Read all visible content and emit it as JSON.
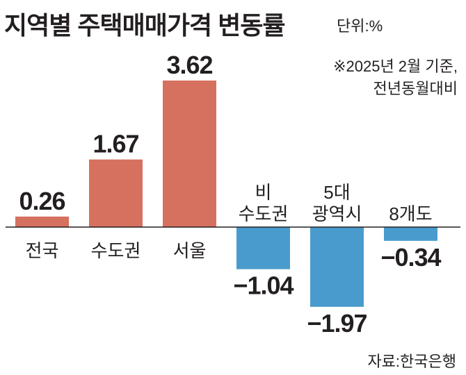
{
  "title": "지역별 주택매매가격 변동률",
  "unit": "단위:%",
  "note": [
    "※2025년 2월 기준,",
    "전년동월대비"
  ],
  "source": "자료:한국은행",
  "colors": {
    "positive": "#d6705f",
    "negative": "#4a9bcd",
    "axis": "#231f20",
    "text": "#231f20"
  },
  "chart_data": {
    "type": "bar",
    "title": "지역별 주택매매가격 변동률",
    "ylabel": "단위:%",
    "xlabel": "",
    "categories": [
      [
        "전국"
      ],
      [
        "수도권"
      ],
      [
        "서울"
      ],
      [
        "비",
        "수도권"
      ],
      [
        "5대",
        "광역시"
      ],
      [
        "8개도"
      ]
    ],
    "values": [
      0.26,
      1.67,
      3.62,
      -1.04,
      -1.97,
      -0.34
    ],
    "value_labels": [
      "0.26",
      "1.67",
      "3.62",
      "−1.04",
      "−1.97",
      "−0.34"
    ],
    "ylim": [
      -2.1,
      3.62
    ],
    "grid": false,
    "legend": "none"
  }
}
